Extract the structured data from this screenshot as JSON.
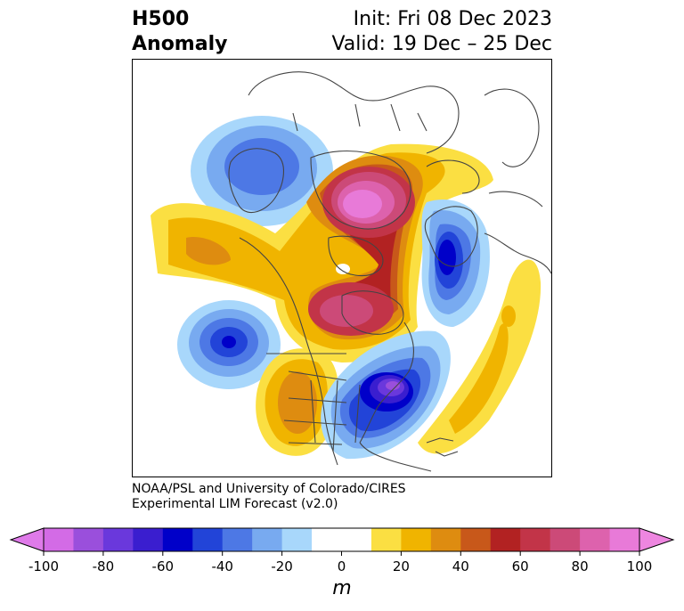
{
  "header": {
    "variable": "H500",
    "subtitle": "Anomaly",
    "init": "Init: Fri 08 Dec 2023",
    "valid": "Valid: 19 Dec – 25 Dec"
  },
  "credit": {
    "line1": "NOAA/PSL and University of Colorado/CIRES",
    "line2": "Experimental LIM Forecast (v2.0)"
  },
  "colorbar": {
    "unit": "m",
    "ticks": [
      "-100",
      "-80",
      "-60",
      "-40",
      "-20",
      "0",
      "20",
      "40",
      "60",
      "80",
      "100"
    ],
    "colors": [
      "#d36be6",
      "#9a4fdc",
      "#6a38dc",
      "#3a1ecf",
      "#0000c9",
      "#2244d8",
      "#4d78e5",
      "#78aaf0",
      "#a8d7fb",
      "#ffffff",
      "#ffffff",
      "#fbdf42",
      "#f0b400",
      "#de8c10",
      "#c8581a",
      "#b22222",
      "#c23448",
      "#cc4a78",
      "#dd62ad",
      "#e87ad8"
    ],
    "under_color": "#df7ae9",
    "over_color": "#ee86e0"
  },
  "map": {
    "projection": "polar stereographic, North America / North Atlantic",
    "anomaly_centers": [
      {
        "name": "Western Canada low",
        "sign": "negative",
        "peak": -40
      },
      {
        "name": "Greenland / Baffin high",
        "sign": "positive",
        "peak": 80
      },
      {
        "name": "Northeast Pacific ridge",
        "sign": "positive",
        "peak": 40
      },
      {
        "name": "East of Greenland low",
        "sign": "negative",
        "peak": -60
      },
      {
        "name": "Hudson Bay high",
        "sign": "positive",
        "peak": 60
      },
      {
        "name": "Gulf of Alaska low",
        "sign": "negative",
        "peak": -60
      },
      {
        "name": "Eastern US / Atlantic low",
        "sign": "negative",
        "peak": -80
      },
      {
        "name": "Western US ridge",
        "sign": "positive",
        "peak": 40
      },
      {
        "name": "Central Atlantic ridge",
        "sign": "positive",
        "peak": 40
      }
    ]
  }
}
